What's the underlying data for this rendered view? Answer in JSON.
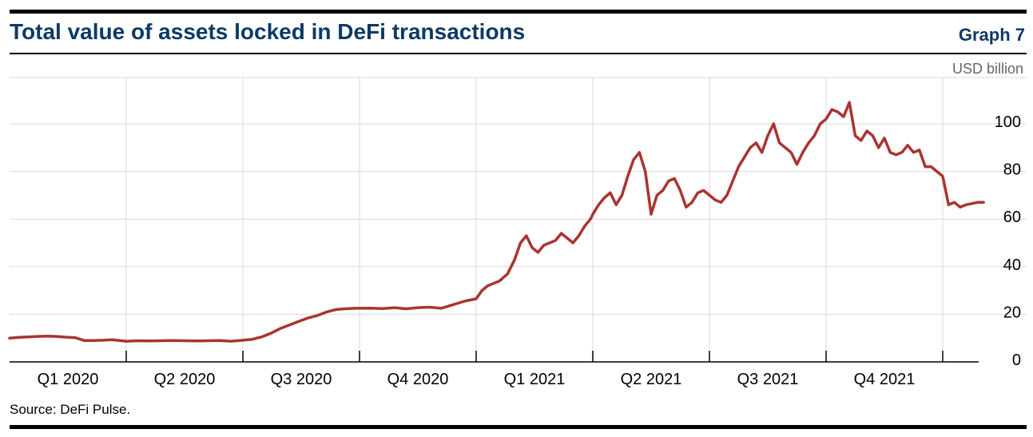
{
  "header": {
    "title": "Total value of assets locked in DeFi transactions",
    "graph_number": "Graph 7"
  },
  "footer": {
    "source": "Source: DeFi Pulse."
  },
  "colors": {
    "line": "#a93431",
    "grid": "#d9d9d9",
    "title": "#0b3a66"
  },
  "chart_data": {
    "type": "line",
    "title": "Total value of assets locked in DeFi transactions",
    "unit_label": "USD billion",
    "ylim": [
      0,
      110
    ],
    "y_ticks": [
      0,
      20,
      40,
      60,
      80,
      100
    ],
    "grid": true,
    "y_axis_side": "right",
    "x_categories": [
      "Q1 2020",
      "Q2 2020",
      "Q3 2020",
      "Q4 2020",
      "Q1 2021",
      "Q2 2021",
      "Q3 2021",
      "Q4 2021"
    ],
    "series": [
      {
        "x": [
          0,
          0.08,
          0.16,
          0.24,
          0.32,
          0.4,
          0.48,
          0.56,
          0.64,
          0.72,
          0.8,
          0.88,
          0.96,
          1.0,
          1.1,
          1.2,
          1.3,
          1.4,
          1.5,
          1.6,
          1.7,
          1.8,
          1.9,
          2.0,
          2.08,
          2.16,
          2.24,
          2.32,
          2.4,
          2.48,
          2.56,
          2.64,
          2.72,
          2.8,
          2.88,
          2.96,
          3.0,
          3.1,
          3.2,
          3.3,
          3.4,
          3.5,
          3.6,
          3.7,
          3.8,
          3.9,
          4.0,
          4.05,
          4.1,
          4.15,
          4.2,
          4.27,
          4.33,
          4.38,
          4.43,
          4.48,
          4.53,
          4.58,
          4.63,
          4.68,
          4.73,
          4.78,
          4.83,
          4.88,
          4.93,
          4.98,
          5.0,
          5.05,
          5.1,
          5.15,
          5.2,
          5.25,
          5.3,
          5.35,
          5.4,
          5.45,
          5.5,
          5.55,
          5.6,
          5.65,
          5.7,
          5.75,
          5.8,
          5.85,
          5.9,
          5.95,
          6.0,
          6.05,
          6.1,
          6.15,
          6.2,
          6.25,
          6.3,
          6.35,
          6.4,
          6.45,
          6.5,
          6.55,
          6.6,
          6.65,
          6.7,
          6.75,
          6.8,
          6.85,
          6.9,
          6.95,
          7.0,
          7.05,
          7.1,
          7.15,
          7.2,
          7.25,
          7.3,
          7.35,
          7.4,
          7.45,
          7.5,
          7.55,
          7.6,
          7.65,
          7.7,
          7.75,
          7.8,
          7.85,
          7.9,
          7.95,
          8.0,
          8.05,
          8.1,
          8.15,
          8.2,
          8.25,
          8.3,
          8.35
        ],
        "values": [
          10.0,
          10.3,
          10.5,
          10.7,
          10.8,
          10.7,
          10.4,
          10.2,
          9.0,
          9.0,
          9.1,
          9.3,
          8.9,
          8.7,
          8.9,
          8.8,
          8.9,
          9.0,
          8.9,
          8.8,
          8.9,
          9.0,
          8.7,
          9.1,
          9.5,
          10.5,
          12.0,
          14.0,
          15.5,
          17.0,
          18.5,
          19.5,
          21.0,
          22.0,
          22.3,
          22.5,
          22.5,
          22.6,
          22.4,
          22.8,
          22.3,
          22.8,
          23.0,
          22.5,
          24.0,
          25.5,
          26.5,
          30.0,
          32.0,
          33.0,
          34.0,
          37.0,
          43.0,
          50.0,
          53.0,
          48.0,
          46.0,
          49.0,
          50.0,
          51.0,
          54.0,
          52.0,
          50.0,
          53.0,
          57.0,
          60.0,
          62.0,
          66.0,
          69.0,
          71.0,
          66.0,
          70.0,
          78.0,
          85.0,
          88.0,
          80.0,
          62.0,
          70.0,
          72.0,
          76.0,
          77.0,
          72.0,
          65.0,
          67.0,
          71.0,
          72.0,
          70.0,
          68.0,
          67.0,
          70.0,
          76.0,
          82.0,
          86.0,
          90.0,
          92.0,
          88.0,
          95.0,
          100.0,
          92.0,
          90.0,
          88.0,
          83.0,
          88.0,
          92.0,
          95.0,
          100.0,
          102.0,
          106.0,
          105.0,
          103.0,
          109.0,
          95.0,
          93.0,
          97.0,
          95.0,
          90.0,
          94.0,
          88.0,
          87.0,
          88.0,
          91.0,
          88.0,
          89.0,
          82.0,
          82.0,
          80.0,
          78.0,
          66.0,
          67.0,
          65.0,
          66.0,
          66.5,
          67.0,
          67.0
        ]
      }
    ]
  }
}
